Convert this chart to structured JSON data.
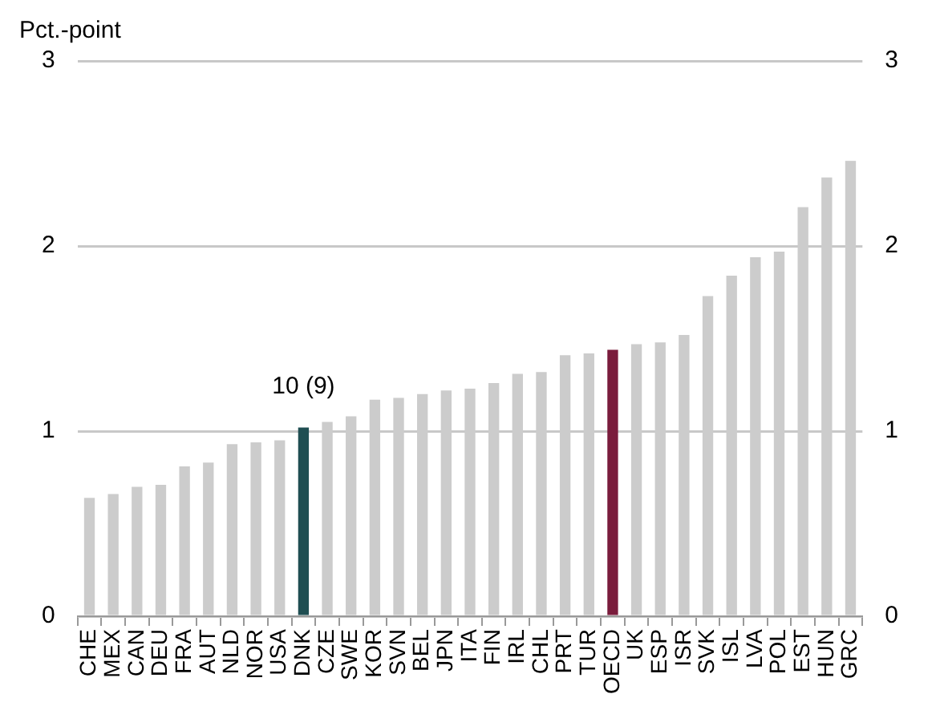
{
  "chart_data": {
    "type": "bar",
    "ylabel": "Pct.-point",
    "categories": [
      "CHE",
      "MEX",
      "CAN",
      "DEU",
      "FRA",
      "AUT",
      "NLD",
      "NOR",
      "USA",
      "DNK",
      "CZE",
      "SWE",
      "KOR",
      "SVN",
      "BEL",
      "JPN",
      "ITA",
      "FIN",
      "IRL",
      "CHL",
      "PRT",
      "TUR",
      "OECD",
      "UK",
      "ESP",
      "ISR",
      "SVK",
      "ISL",
      "LVA",
      "POL",
      "EST",
      "HUN",
      "GRC"
    ],
    "values": [
      0.64,
      0.66,
      0.7,
      0.71,
      0.81,
      0.83,
      0.93,
      0.94,
      0.95,
      1.02,
      1.05,
      1.08,
      1.17,
      1.18,
      1.2,
      1.22,
      1.23,
      1.26,
      1.31,
      1.32,
      1.41,
      1.42,
      1.44,
      1.47,
      1.48,
      1.52,
      1.73,
      1.84,
      1.94,
      1.97,
      2.21,
      2.37,
      2.46
    ],
    "colors": [
      "#cccccc",
      "#cccccc",
      "#cccccc",
      "#cccccc",
      "#cccccc",
      "#cccccc",
      "#cccccc",
      "#cccccc",
      "#cccccc",
      "#1f4e52",
      "#cccccc",
      "#cccccc",
      "#cccccc",
      "#cccccc",
      "#cccccc",
      "#cccccc",
      "#cccccc",
      "#cccccc",
      "#cccccc",
      "#cccccc",
      "#cccccc",
      "#cccccc",
      "#7a1c3c",
      "#cccccc",
      "#cccccc",
      "#cccccc",
      "#cccccc",
      "#cccccc",
      "#cccccc",
      "#cccccc",
      "#cccccc",
      "#cccccc",
      "#cccccc"
    ],
    "ylim": [
      0,
      3
    ],
    "yticks": [
      0,
      1,
      2,
      3
    ],
    "y2lim": [
      0,
      3
    ],
    "y2ticks": [
      0,
      1,
      2,
      3
    ],
    "grid": "y",
    "annotations": [
      {
        "text": "10 (9)",
        "x": "DNK",
        "y": 1.02
      }
    ]
  }
}
